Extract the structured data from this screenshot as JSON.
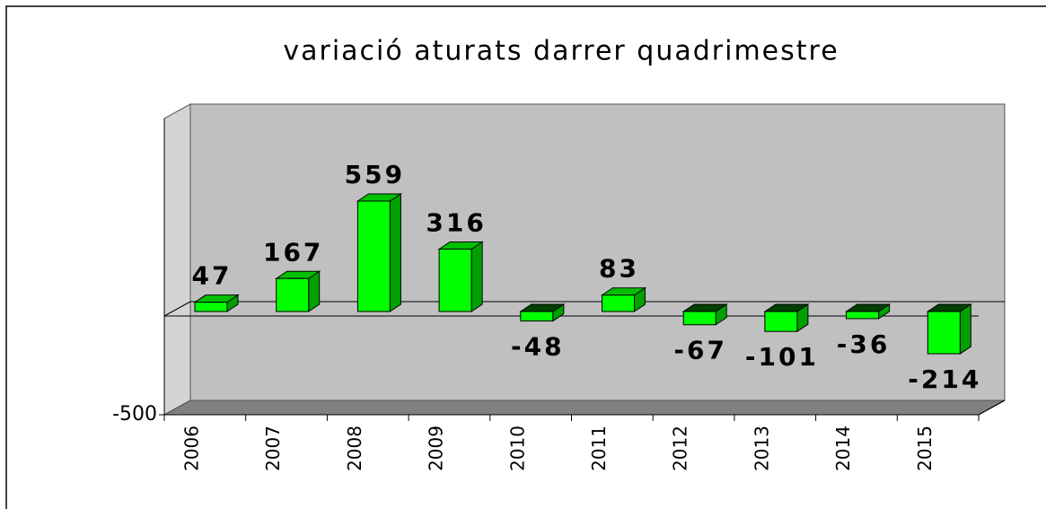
{
  "chart_data": {
    "type": "bar3d",
    "title": "variació aturats darrer quadrimestre",
    "categories": [
      "2006",
      "2007",
      "2008",
      "2009",
      "2010",
      "2011",
      "2012",
      "2013",
      "2014",
      "2015"
    ],
    "values": [
      47,
      167,
      559,
      316,
      -48,
      83,
      -67,
      -101,
      -36,
      -214
    ],
    "color": "#00ff00",
    "ylim": [
      -500,
      1000
    ],
    "yticks": [
      -500
    ]
  }
}
